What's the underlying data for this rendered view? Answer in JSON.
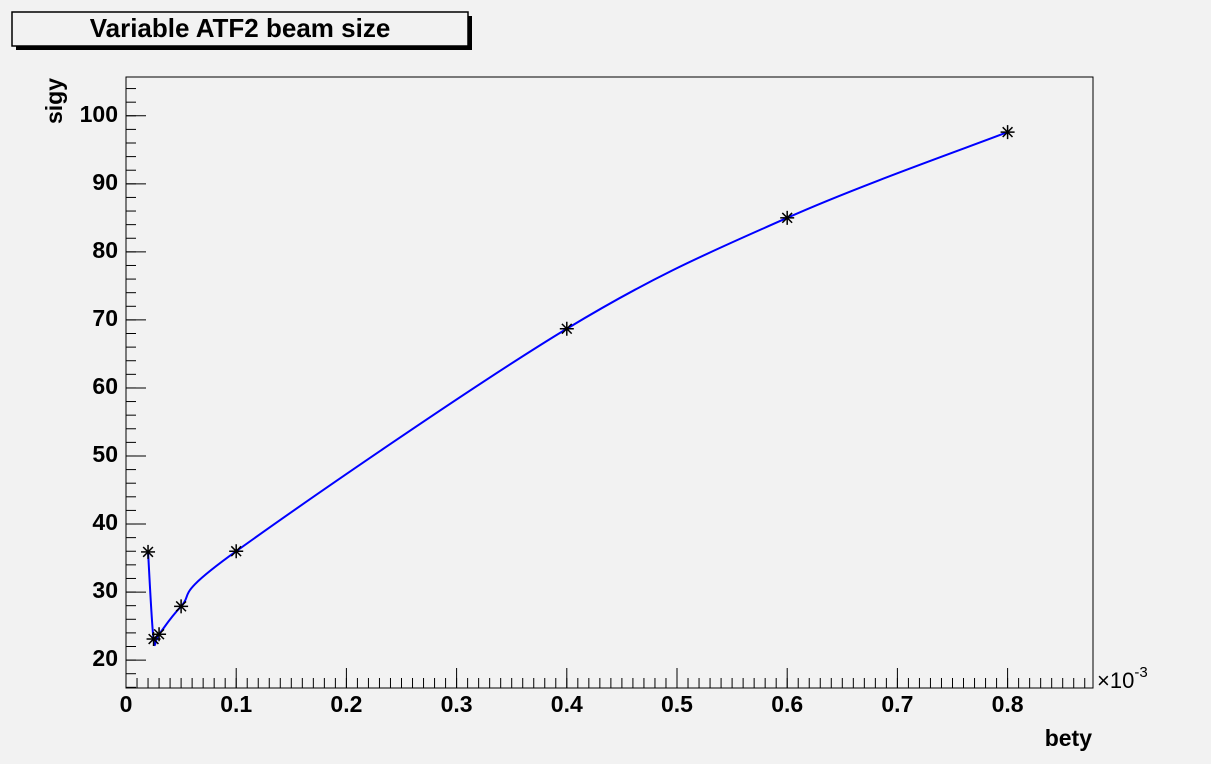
{
  "chart_data": {
    "type": "line",
    "title": "Variable ATF2 beam size",
    "x_label": "bety",
    "y_label": "sigy",
    "x_multiplier": "×10",
    "x_multiplier_exponent": "-3",
    "x": [
      0.02,
      0.025,
      0.03,
      0.05,
      0.1,
      0.4,
      0.6,
      0.8
    ],
    "series": [
      {
        "color": "#0000ff",
        "values": [
          35.9,
          23.1,
          23.8,
          27.9,
          36,
          68.7,
          85,
          97.6
        ]
      }
    ],
    "xlim": [
      0,
      0.8775
    ],
    "xticks": [
      0,
      0.1,
      0.2,
      0.3,
      0.4,
      0.5,
      0.6,
      0.7,
      0.8
    ],
    "ylim": [
      15.9,
      105.7
    ],
    "yticks": [
      20,
      30,
      40,
      50,
      60,
      70,
      80,
      90,
      100
    ],
    "grid": false,
    "smooth": true,
    "marker": "asterisk"
  }
}
